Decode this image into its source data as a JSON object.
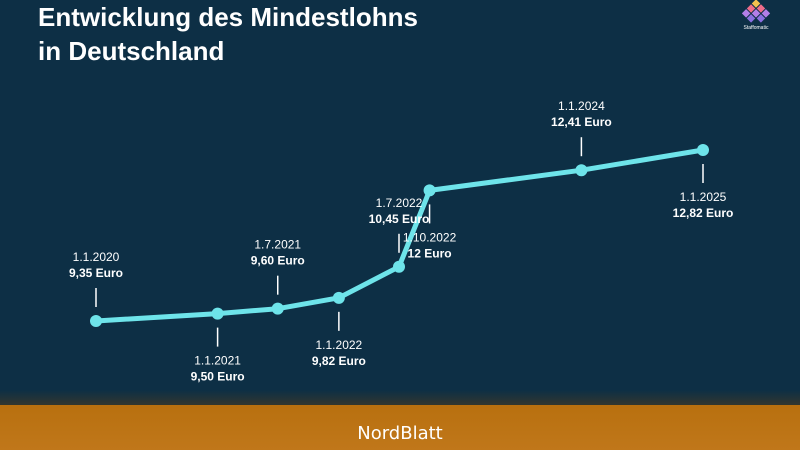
{
  "header": {
    "title_line1": "Entwicklung des Mindestlohns",
    "title_line2": "in Deutschland"
  },
  "logo": {
    "text": "Staffomatic",
    "icon": "staffomatic-logo-icon"
  },
  "footer": {
    "text": "NordBlatt"
  },
  "colors": {
    "background": "#0d2f45",
    "line": "#6ee4ea",
    "footer": "#bd7416"
  },
  "chart_data": {
    "type": "line",
    "x": [
      "2020-01-01",
      "2021-01-01",
      "2021-07-01",
      "2022-01-01",
      "2022-07-01",
      "2022-10-01",
      "2024-01-01",
      "2025-01-01"
    ],
    "values": [
      9.35,
      9.5,
      9.6,
      9.82,
      10.45,
      12.0,
      12.41,
      12.82
    ],
    "date_labels": [
      "1.1.2020",
      "1.1.2021",
      "1.7.2021",
      "1.1.2022",
      "1.7.2022",
      "1.10.2022",
      "1.1.2024",
      "1.1.2025"
    ],
    "value_labels": [
      "9,35 Euro",
      "9,50 Euro",
      "9,60 Euro",
      "9,82 Euro",
      "10,45 Euro",
      "12 Euro",
      "12,41 Euro",
      "12,82 Euro"
    ],
    "label_positions": [
      "above",
      "below",
      "above",
      "below",
      "above",
      "below",
      "above",
      "below"
    ],
    "ylim": [
      9.35,
      12.82
    ],
    "grid": false,
    "legend": "none"
  }
}
